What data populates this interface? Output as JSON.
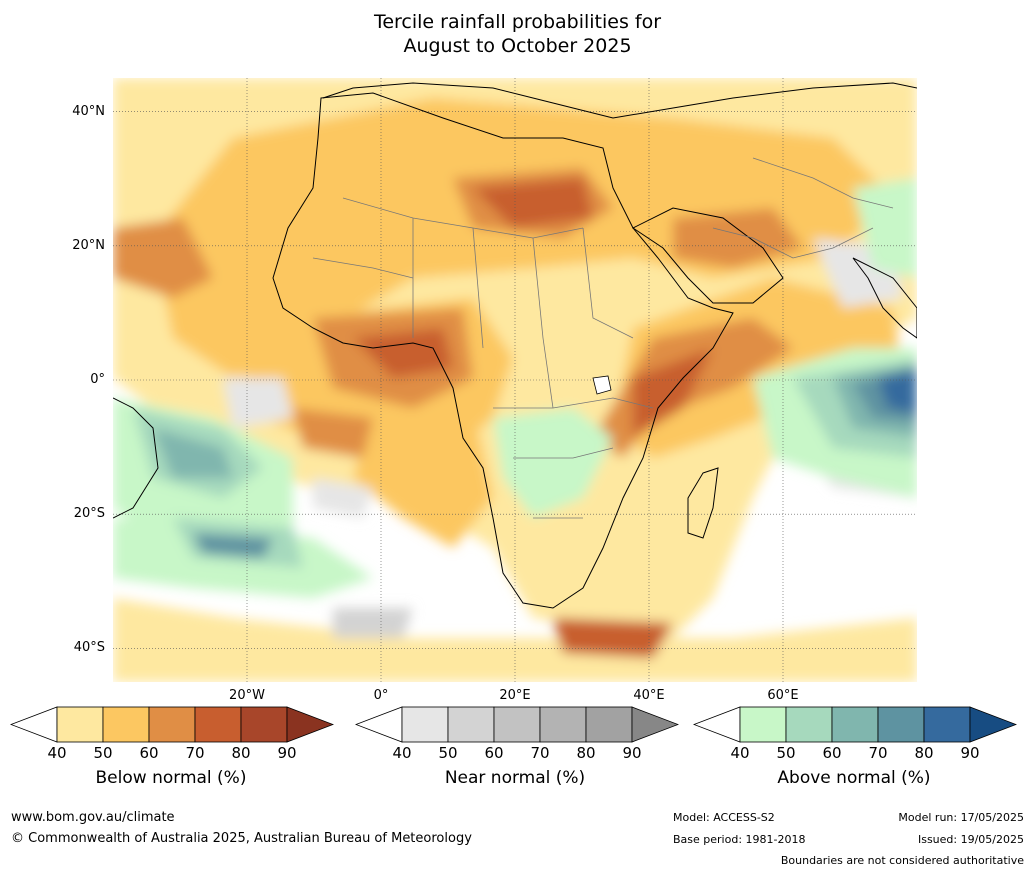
{
  "title_line1": "Tercile rainfall probabilities for",
  "title_line2": "August to October 2025",
  "map": {
    "lat_labels": [
      {
        "text": "40°N",
        "lat": 40
      },
      {
        "text": "20°N",
        "lat": 20
      },
      {
        "text": "0°",
        "lat": 0
      },
      {
        "text": "20°S",
        "lat": -20
      },
      {
        "text": "40°S",
        "lat": -40
      }
    ],
    "lon_labels": [
      {
        "text": "20°W",
        "lon": -20
      },
      {
        "text": "0°",
        "lon": 0
      },
      {
        "text": "20°E",
        "lon": 20
      },
      {
        "text": "40°E",
        "lon": 40
      },
      {
        "text": "60°E",
        "lon": 60
      }
    ],
    "lon_range": [
      -40,
      80
    ],
    "lat_range": [
      -45,
      45
    ],
    "ocean_color": "#ffffff"
  },
  "colorbars": [
    {
      "title": "Below normal (%)",
      "ticks": [
        "40",
        "50",
        "60",
        "70",
        "80",
        "90"
      ],
      "low_color": "#ffffff",
      "colors": [
        "#fee8a0",
        "#fcc761",
        "#e08e45",
        "#c85e2f",
        "#a8462a"
      ],
      "high_color": "#8a3320"
    },
    {
      "title": "Near normal (%)",
      "ticks": [
        "40",
        "50",
        "60",
        "70",
        "80",
        "90"
      ],
      "low_color": "#ffffff",
      "colors": [
        "#e6e6e6",
        "#d3d3d3",
        "#c2c2c2",
        "#b3b3b3",
        "#a2a2a2"
      ],
      "high_color": "#878787"
    },
    {
      "title": "Above normal (%)",
      "ticks": [
        "40",
        "50",
        "60",
        "70",
        "80",
        "90"
      ],
      "low_color": "#ffffff",
      "colors": [
        "#c8f7c8",
        "#a6d9bd",
        "#80b6ae",
        "#5e93a1",
        "#356a9e"
      ],
      "high_color": "#174c82"
    }
  ],
  "footer": {
    "website": "www.bom.gov.au/climate",
    "copyright": "© Commonwealth of Australia 2025, Australian Bureau of Meteorology",
    "model": "Model: ACCESS-S2",
    "base_period": "Base period: 1981-2018",
    "model_run": "Model run: 17/05/2025",
    "issued": "Issued: 19/05/2025",
    "disclaimer": "Boundaries are not considered authoritative"
  }
}
